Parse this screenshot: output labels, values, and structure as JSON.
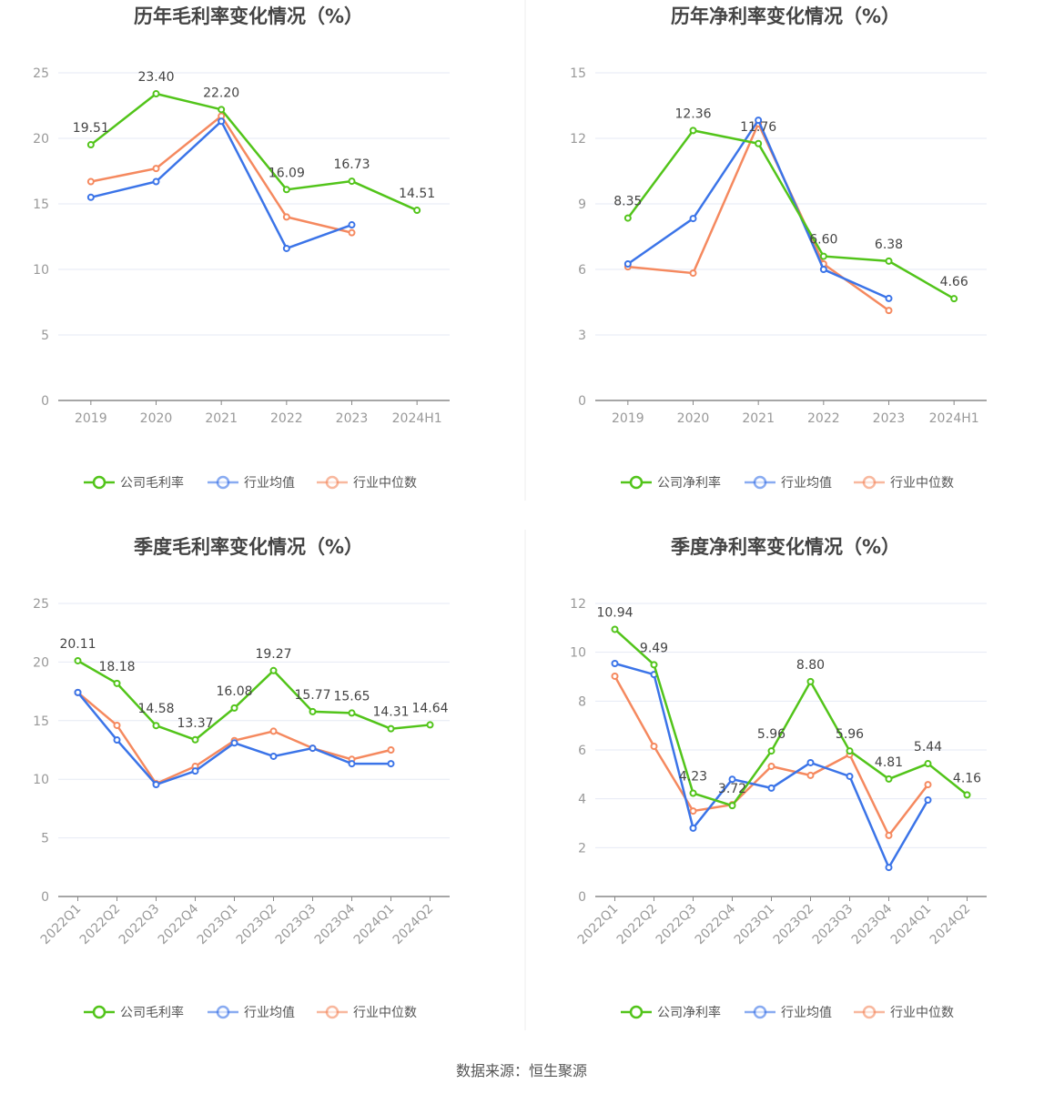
{
  "source": "数据来源：恒生聚源",
  "colors": {
    "company": "#52c41a",
    "industry_avg": "#3b74e8",
    "industry_median": "#f5895f"
  },
  "chart_data": [
    {
      "type": "line",
      "title": "历年毛利率变化情况（%）",
      "categories": [
        "2019",
        "2020",
        "2021",
        "2022",
        "2023",
        "2024H1"
      ],
      "ylim": [
        0,
        25
      ],
      "yticks": [
        0,
        5,
        10,
        15,
        20,
        25
      ],
      "grid": true,
      "legend": "bottom",
      "series": [
        {
          "name": "公司毛利率",
          "values": [
            19.51,
            23.4,
            22.2,
            16.09,
            16.73,
            14.51
          ],
          "labels": [
            "19.51",
            "23.40",
            "22.20",
            "16.09",
            "16.73",
            "14.51"
          ]
        },
        {
          "name": "行业均值",
          "values": [
            15.5,
            16.7,
            21.3,
            11.6,
            13.4,
            null
          ]
        },
        {
          "name": "行业中位数",
          "values": [
            16.7,
            17.7,
            21.7,
            14.0,
            12.8,
            null
          ]
        }
      ]
    },
    {
      "type": "line",
      "title": "历年净利率变化情况（%）",
      "categories": [
        "2019",
        "2020",
        "2021",
        "2022",
        "2023",
        "2024H1"
      ],
      "ylim": [
        0,
        15
      ],
      "yticks": [
        0,
        3,
        6,
        9,
        12,
        15
      ],
      "grid": true,
      "legend": "bottom",
      "series": [
        {
          "name": "公司净利率",
          "values": [
            8.35,
            12.36,
            11.76,
            6.6,
            6.38,
            4.66
          ],
          "labels": [
            "8.35",
            "12.36",
            "11.76",
            "6.60",
            "6.38",
            "4.66"
          ]
        },
        {
          "name": "行业均值",
          "values": [
            6.25,
            8.33,
            12.83,
            6.0,
            4.67,
            null
          ]
        },
        {
          "name": "行业中位数",
          "values": [
            6.12,
            5.83,
            12.67,
            6.25,
            4.12,
            null
          ]
        }
      ]
    },
    {
      "type": "line",
      "title": "季度毛利率变化情况（%）",
      "categories": [
        "2022Q1",
        "2022Q2",
        "2022Q3",
        "2022Q4",
        "2023Q1",
        "2023Q2",
        "2023Q3",
        "2023Q4",
        "2024Q1",
        "2024Q2"
      ],
      "ylim": [
        0,
        25
      ],
      "yticks": [
        0,
        5,
        10,
        15,
        20,
        25
      ],
      "grid": true,
      "legend": "bottom",
      "series": [
        {
          "name": "公司毛利率",
          "values": [
            20.11,
            18.18,
            14.58,
            13.37,
            16.08,
            19.27,
            15.77,
            15.65,
            14.31,
            14.64
          ],
          "labels": [
            "20.11",
            "18.18",
            "14.58",
            "13.37",
            "16.08",
            "19.27",
            "15.77",
            "15.65",
            "14.31",
            "14.64"
          ]
        },
        {
          "name": "行业均值",
          "values": [
            17.4,
            13.35,
            9.55,
            10.7,
            13.1,
            11.96,
            12.65,
            11.33,
            11.33,
            null
          ]
        },
        {
          "name": "行业中位数",
          "values": [
            17.4,
            14.6,
            9.63,
            11.1,
            13.3,
            14.1,
            12.65,
            11.7,
            12.5,
            null
          ]
        }
      ]
    },
    {
      "type": "line",
      "title": "季度净利率变化情况（%）",
      "categories": [
        "2022Q1",
        "2022Q2",
        "2022Q3",
        "2022Q4",
        "2023Q1",
        "2023Q2",
        "2023Q3",
        "2023Q4",
        "2024Q1",
        "2024Q2"
      ],
      "ylim": [
        0,
        12
      ],
      "yticks": [
        0,
        2,
        4,
        6,
        8,
        10,
        12
      ],
      "grid": true,
      "legend": "bottom",
      "series": [
        {
          "name": "公司净利率",
          "values": [
            10.94,
            9.49,
            4.23,
            3.72,
            5.96,
            8.8,
            5.96,
            4.81,
            5.44,
            4.16
          ],
          "labels": [
            "10.94",
            "9.49",
            "4.23",
            "3.72",
            "5.96",
            "8.80",
            "5.96",
            "4.81",
            "5.44",
            "4.16"
          ]
        },
        {
          "name": "行业均值",
          "values": [
            9.54,
            9.09,
            2.8,
            4.8,
            4.44,
            5.48,
            4.92,
            1.19,
            3.95,
            null
          ]
        },
        {
          "name": "行业中位数",
          "values": [
            9.02,
            6.15,
            3.5,
            3.76,
            5.33,
            4.96,
            5.81,
            2.5,
            4.58,
            null
          ]
        }
      ]
    }
  ]
}
